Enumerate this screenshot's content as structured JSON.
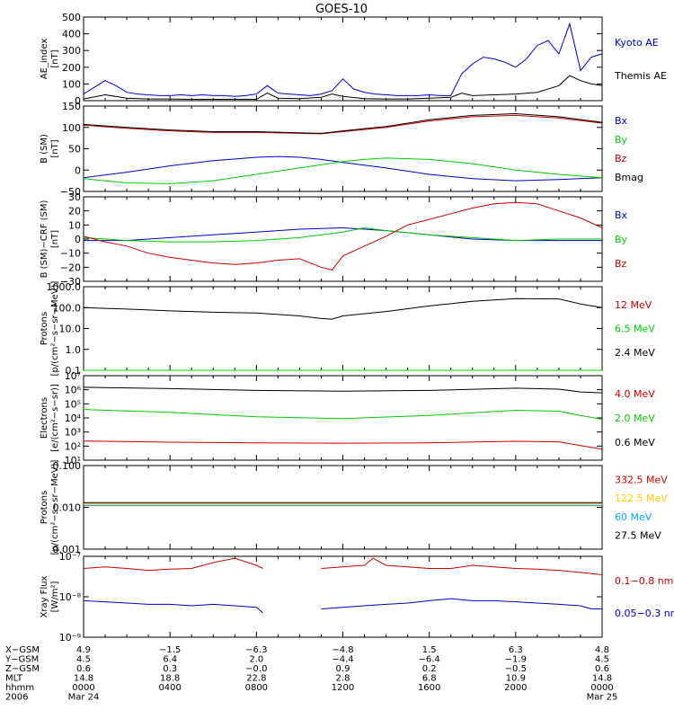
{
  "title": "GOES-10",
  "chart_data": [
    {
      "type": "line",
      "ylabel": [
        "AE_index",
        "[nT]"
      ],
      "ylim": [
        0,
        500
      ],
      "yscale": "linear",
      "ticks": [
        "0",
        "100",
        "200",
        "300",
        "400",
        "500"
      ],
      "tick_values": [
        0,
        100,
        200,
        300,
        400,
        500
      ],
      "series": [
        {
          "name": "Kyoto AE",
          "color": "#0000c8",
          "x": [
            0,
            0.5,
            1,
            1.5,
            2,
            2.5,
            3,
            3.5,
            4,
            4.5,
            5,
            5.5,
            6,
            6.5,
            7,
            7.5,
            8,
            8.5,
            9,
            9.5,
            10,
            10.5,
            11,
            11.5,
            12,
            12.5,
            13,
            13.5,
            14,
            14.5,
            15,
            15.5,
            16,
            16.5,
            17,
            17.5,
            18,
            18.5,
            19,
            19.5,
            20,
            20.5,
            21,
            21.5,
            22,
            22.5,
            23,
            23.5,
            24
          ],
          "values": [
            40,
            80,
            120,
            90,
            50,
            40,
            35,
            30,
            30,
            35,
            30,
            35,
            30,
            30,
            25,
            30,
            40,
            90,
            45,
            40,
            35,
            30,
            40,
            60,
            130,
            70,
            50,
            40,
            35,
            30,
            30,
            30,
            35,
            30,
            30,
            160,
            220,
            260,
            250,
            230,
            200,
            250,
            330,
            360,
            280,
            460,
            180,
            260,
            280
          ]
        },
        {
          "name": "Themis AE",
          "color": "#000000",
          "x": [
            0,
            1,
            2,
            3,
            4,
            5,
            6,
            7,
            8,
            8.5,
            9,
            10,
            11,
            11.5,
            12,
            13,
            14,
            15,
            16,
            17,
            17.5,
            18,
            19,
            20,
            21,
            22,
            22.5,
            23,
            23.5,
            24
          ],
          "values": [
            10,
            35,
            15,
            10,
            10,
            8,
            8,
            8,
            8,
            45,
            15,
            12,
            20,
            40,
            25,
            12,
            10,
            10,
            15,
            20,
            45,
            30,
            35,
            40,
            50,
            90,
            150,
            120,
            100,
            90
          ]
        }
      ]
    },
    {
      "type": "line",
      "ylabel": [
        "B (SM)",
        "[nT]"
      ],
      "ylim": [
        -50,
        150
      ],
      "yscale": "linear",
      "ticks": [
        "−50",
        "0",
        "50",
        "100",
        "150"
      ],
      "tick_values": [
        -50,
        0,
        50,
        100,
        150
      ],
      "series": [
        {
          "name": "Bx",
          "color": "#0000c8",
          "x": [
            0,
            2,
            4,
            6,
            8,
            9,
            10,
            11,
            12,
            14,
            16,
            18,
            20,
            22,
            24
          ],
          "values": [
            -18,
            -5,
            10,
            22,
            30,
            32,
            30,
            25,
            18,
            5,
            -10,
            -20,
            -25,
            -22,
            -18
          ]
        },
        {
          "name": "By",
          "color": "#00cc00",
          "x": [
            0,
            2,
            4,
            6,
            8,
            10,
            12,
            13,
            14,
            16,
            18,
            20,
            22,
            24
          ],
          "values": [
            -20,
            -30,
            -32,
            -25,
            -10,
            5,
            20,
            25,
            28,
            25,
            15,
            0,
            -10,
            -18
          ]
        },
        {
          "name": "Bz",
          "color": "#c80000",
          "x": [
            0,
            2,
            4,
            6,
            8,
            11,
            12,
            14,
            16,
            18,
            20,
            22,
            24
          ],
          "values": [
            105,
            98,
            92,
            88,
            88,
            85,
            90,
            100,
            115,
            125,
            128,
            122,
            110
          ]
        },
        {
          "name": "Bmag",
          "color": "#000000",
          "x": [
            0,
            2,
            4,
            6,
            8,
            11,
            12,
            14,
            16,
            18,
            20,
            22,
            24
          ],
          "values": [
            107,
            100,
            94,
            90,
            90,
            86,
            92,
            102,
            118,
            128,
            132,
            125,
            112
          ]
        }
      ]
    },
    {
      "type": "line",
      "ylabel": [
        "B (SM)−CRF (SM)",
        "[nT]"
      ],
      "ylim": [
        -30,
        30
      ],
      "yscale": "linear",
      "ticks": [
        "−30",
        "−20",
        "−10",
        "0",
        "10",
        "20",
        "30"
      ],
      "tick_values": [
        -30,
        -20,
        -10,
        0,
        10,
        20,
        30
      ],
      "series": [
        {
          "name": "Bx",
          "color": "#0000c8",
          "x": [
            0,
            2,
            4,
            6,
            8,
            10,
            12,
            13,
            14,
            16,
            18,
            20,
            22,
            24
          ],
          "values": [
            -1,
            -1,
            1,
            3,
            5,
            7,
            8,
            7,
            6,
            3,
            0,
            -1,
            -1,
            -1
          ]
        },
        {
          "name": "By",
          "color": "#00cc00",
          "x": [
            0,
            2,
            4,
            6,
            8,
            10,
            12,
            13,
            14,
            16,
            18,
            20,
            22,
            24
          ],
          "values": [
            1,
            -1,
            -2,
            -2,
            -1,
            1,
            5,
            8,
            6,
            3,
            1,
            -1,
            0,
            0
          ]
        },
        {
          "name": "Bz",
          "color": "#c80000",
          "x": [
            0,
            1,
            2,
            3,
            4,
            5,
            6,
            7,
            8,
            9,
            10,
            11,
            11.5,
            12,
            13,
            14,
            15,
            16,
            17,
            18,
            19,
            20,
            21,
            22,
            23,
            24
          ],
          "values": [
            2,
            -2,
            -5,
            -10,
            -13,
            -15,
            -17,
            -18,
            -17,
            -15,
            -14,
            -20,
            -22,
            -12,
            -5,
            2,
            10,
            14,
            18,
            22,
            25,
            26,
            25,
            20,
            15,
            8
          ]
        }
      ]
    },
    {
      "type": "line",
      "ylabel": [
        "Protons",
        "[p/(cm²−s−sr−MeV)]"
      ],
      "ylim": [
        0.1,
        1000
      ],
      "yscale": "log",
      "ticks": [
        "0.1",
        "1.0",
        "10.0",
        "100.0",
        "1000.0"
      ],
      "tick_values": [
        0.1,
        1,
        10,
        100,
        1000
      ],
      "series": [
        {
          "name": "12 MeV",
          "color": "#c80000",
          "x": [
            0,
            12,
            24
          ],
          "values": [
            0.1,
            0.1,
            0.1
          ]
        },
        {
          "name": "6.5 MeV",
          "color": "#00cc00",
          "x": [
            0,
            12,
            24
          ],
          "values": [
            0.1,
            0.1,
            0.1
          ]
        },
        {
          "name": "2.4 MeV",
          "color": "#000000",
          "x": [
            0,
            2,
            4,
            6,
            8,
            10,
            11,
            11.5,
            12,
            14,
            16,
            18,
            20,
            22,
            23,
            24
          ],
          "values": [
            100,
            85,
            70,
            60,
            55,
            40,
            30,
            28,
            40,
            65,
            120,
            200,
            270,
            260,
            150,
            100
          ]
        }
      ]
    },
    {
      "type": "line",
      "ylabel": [
        "Electrons",
        "[e/(cm²−s−sr)]"
      ],
      "ylim": [
        10,
        10000000
      ],
      "yscale": "log",
      "ticks": [
        "10¹",
        "10²",
        "10³",
        "10⁴",
        "10⁵",
        "10⁶",
        "10⁷"
      ],
      "tick_values": [
        10,
        100,
        1000,
        10000,
        100000,
        1000000,
        10000000
      ],
      "series": [
        {
          "name": "4.0 MeV",
          "color": "#c80000",
          "x": [
            0,
            4,
            8,
            12,
            16,
            20,
            22,
            23,
            24
          ],
          "values": [
            230,
            190,
            170,
            160,
            170,
            220,
            200,
            110,
            60
          ]
        },
        {
          "name": "2.0 MeV",
          "color": "#00cc00",
          "x": [
            0,
            4,
            8,
            12,
            16,
            20,
            22,
            23,
            24
          ],
          "values": [
            40000,
            25000,
            12000,
            9000,
            15000,
            35000,
            30000,
            15000,
            8000
          ]
        },
        {
          "name": "0.6 MeV",
          "color": "#000000",
          "x": [
            0,
            4,
            8,
            12,
            16,
            20,
            22,
            23,
            24
          ],
          "values": [
            1500000,
            1200000,
            900000,
            800000,
            900000,
            1300000,
            1100000,
            700000,
            600000
          ]
        }
      ]
    },
    {
      "type": "line",
      "ylabel": [
        "Protons",
        "[p/(cm²−s−sr−MeV)]"
      ],
      "ylim": [
        0.001,
        0.1
      ],
      "yscale": "log",
      "ticks": [
        "0.001",
        "0.010",
        "0.100"
      ],
      "tick_values": [
        0.001,
        0.01,
        0.1
      ],
      "series": [
        {
          "name": "332.5 MeV",
          "color": "#c80000",
          "x": [
            0,
            24
          ],
          "values": [
            0.012,
            0.012
          ]
        },
        {
          "name": "122.5 MeV",
          "color": "#ffcc00",
          "x": [
            0,
            24
          ],
          "values": [
            0.012,
            0.012
          ]
        },
        {
          "name": "60 MeV",
          "color": "#00aaff",
          "x": [
            0,
            24
          ],
          "values": [
            0.011,
            0.011
          ]
        },
        {
          "name": "27.5 MeV",
          "color": "#000000",
          "x": [
            0,
            24
          ],
          "values": [
            0.013,
            0.013
          ]
        }
      ]
    },
    {
      "type": "line",
      "ylabel": [
        "Xray Flux",
        "[W/m²]"
      ],
      "ylim": [
        1e-09,
        1e-07
      ],
      "yscale": "log",
      "ticks": [
        "10⁻⁹",
        "10⁻⁸",
        "10⁻⁷"
      ],
      "tick_values": [
        1e-09,
        1e-08,
        1e-07
      ],
      "series": [
        {
          "name": "0.1−0.8 nm",
          "color": "#c80000",
          "x": [
            0,
            1,
            2,
            3,
            4,
            5,
            6,
            7,
            8,
            8.3,
            8.5,
            9,
            10,
            11,
            12,
            13,
            13.4,
            14,
            15,
            16,
            17,
            18,
            19,
            20,
            21,
            22,
            23,
            24
          ],
          "values": [
            5e-08,
            5.5e-08,
            5e-08,
            4.5e-08,
            4.8e-08,
            5e-08,
            7e-08,
            9e-08,
            6e-08,
            5e-08,
            null,
            null,
            null,
            5e-08,
            5.5e-08,
            6e-08,
            9e-08,
            6e-08,
            5.5e-08,
            5e-08,
            5e-08,
            6e-08,
            5.5e-08,
            5e-08,
            4.8e-08,
            4.5e-08,
            4e-08,
            3.5e-08
          ]
        },
        {
          "name": "0.05−0.3 nm",
          "color": "#0000c8",
          "x": [
            0,
            1,
            2,
            3,
            4,
            5,
            6,
            7,
            8,
            8.3,
            8.5,
            9,
            10,
            11,
            12,
            13,
            14,
            15,
            16,
            17,
            18,
            19,
            20,
            21,
            22,
            23,
            23.5,
            24
          ],
          "values": [
            8e-09,
            7.5e-09,
            7e-09,
            6.5e-09,
            6.5e-09,
            6e-09,
            6.5e-09,
            6e-09,
            5.5e-09,
            4e-09,
            null,
            null,
            null,
            5e-09,
            5.5e-09,
            6e-09,
            6.5e-09,
            7e-09,
            8e-09,
            9e-09,
            8e-09,
            8e-09,
            7.5e-09,
            7e-09,
            6.5e-09,
            6e-09,
            5e-09,
            5e-09
          ]
        }
      ]
    }
  ],
  "x_axis": {
    "range_hours": [
      0,
      24
    ],
    "rows": [
      {
        "label": "X−GSM",
        "values": [
          "4.9",
          "−1.5",
          "−6.3",
          "−4.8",
          "1.5",
          "6.3",
          "4.8"
        ]
      },
      {
        "label": "Y−GSM",
        "values": [
          "4.5",
          "6.4",
          "2.0",
          "−4.4",
          "−6.4",
          "−1.9",
          "4.5"
        ]
      },
      {
        "label": "Z−GSM",
        "values": [
          "0.6",
          "0.3",
          "−0.0",
          "0.9",
          "0.2",
          "−0.5",
          "0.6"
        ]
      },
      {
        "label": "MLT",
        "values": [
          "14.8",
          "18.8",
          "22.8",
          "2.8",
          "6.8",
          "10.9",
          "14.8"
        ]
      },
      {
        "label": "hhmm",
        "values": [
          "0000",
          "0400",
          "0800",
          "1200",
          "1600",
          "2000",
          "0000"
        ]
      },
      {
        "label": "2006",
        "values": [
          "Mar 24",
          "",
          "",
          "",
          "",
          "",
          "Mar 25"
        ]
      }
    ]
  }
}
